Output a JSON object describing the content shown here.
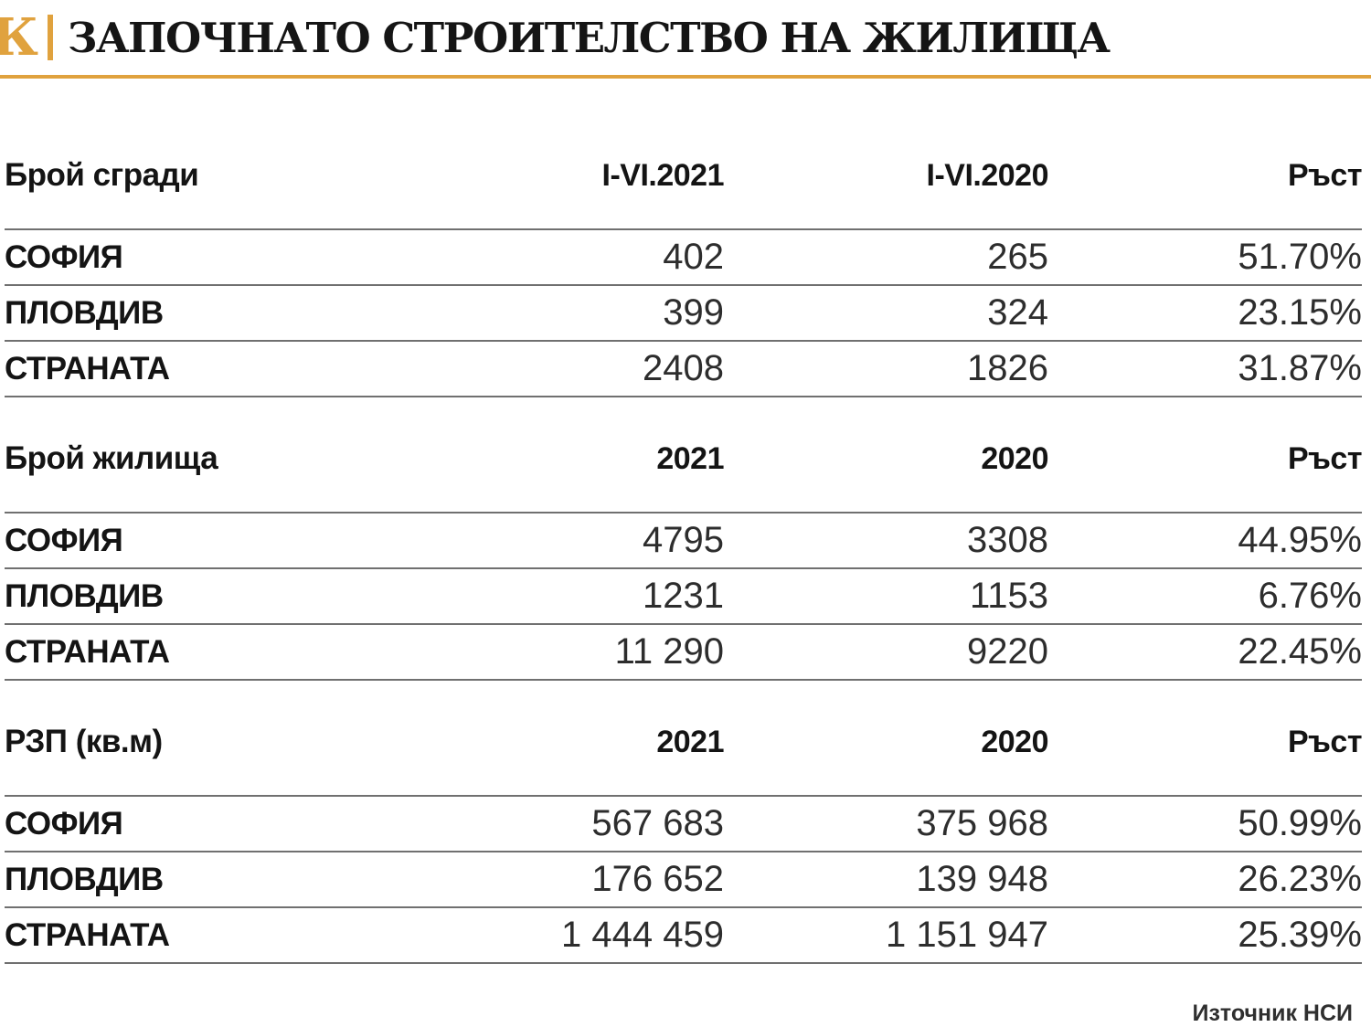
{
  "header": {
    "logo_letter": "К",
    "title": "ЗАПОЧНАТО СТРОИТЕЛСТВО НА ЖИЛИЩА"
  },
  "footer": {
    "source": "Източник НСИ"
  },
  "colors": {
    "accent": "#e0a23e",
    "line_gray": "#707070"
  },
  "chart_data": {
    "type": "table",
    "title": "ЗАПОЧНАТО СТРОИТЕЛСТВО НА ЖИЛИЩА",
    "source_note": "Източник НСИ",
    "sections": [
      {
        "label": "Брой сгради",
        "columns": [
          "I-VI.2021",
          "I-VI.2020",
          "Ръст"
        ],
        "rows": [
          {
            "name": "СОФИЯ",
            "values": [
              "402",
              "265",
              "51.70%"
            ]
          },
          {
            "name": "ПЛОВДИВ",
            "values": [
              "399",
              "324",
              "23.15%"
            ]
          },
          {
            "name": "СТРАНАТА",
            "values": [
              "2408",
              "1826",
              "31.87%"
            ]
          }
        ]
      },
      {
        "label": "Брой жилища",
        "columns": [
          "2021",
          "2020",
          "Ръст"
        ],
        "rows": [
          {
            "name": "СОФИЯ",
            "values": [
              "4795",
              "3308",
              "44.95%"
            ]
          },
          {
            "name": "ПЛОВДИВ",
            "values": [
              "1231",
              "1153",
              "6.76%"
            ]
          },
          {
            "name": "СТРАНАТА",
            "values": [
              "11 290",
              "9220",
              "22.45%"
            ]
          }
        ]
      },
      {
        "label": "РЗП (кв.м)",
        "columns": [
          "2021",
          "2020",
          "Ръст"
        ],
        "rows": [
          {
            "name": "СОФИЯ",
            "values": [
              "567 683",
              "375 968",
              "50.99%"
            ]
          },
          {
            "name": "ПЛОВДИВ",
            "values": [
              "176 652",
              "139 948",
              "26.23%"
            ]
          },
          {
            "name": "СТРАНАТА",
            "values": [
              "1 444 459",
              "1 151 947",
              "25.39%"
            ]
          }
        ]
      }
    ]
  }
}
